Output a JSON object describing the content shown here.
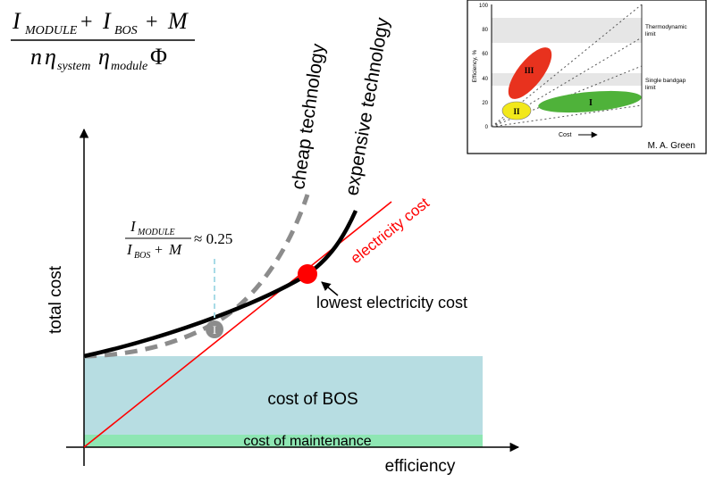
{
  "formula": {
    "num_I": "I",
    "num_sub1": "MODULE",
    "num_plus1": "+",
    "num_I2": "I",
    "num_sub2": "BOS",
    "num_plus2": "+",
    "num_M": "M",
    "den_n": "n",
    "den_eta1": "η",
    "den_sub1": "system",
    "den_eta2": "η",
    "den_sub2": "module",
    "den_phi": "Φ"
  },
  "ratio": {
    "num_I": "I",
    "num_sub": "MODULE",
    "den_I": "I",
    "den_sub": "BOS",
    "den_plus": "+",
    "den_M": "M",
    "approx": "≈ 0.25"
  },
  "labels": {
    "y_axis": "total cost",
    "x_axis": "efficiency",
    "cheap": "cheap technology",
    "expensive": "expensive technology",
    "electricity_cost": "electricity cost",
    "lowest": "lowest electricity cost",
    "bos": "cost of BOS",
    "maintenance": "cost of maintenance",
    "marker_I": "I"
  },
  "inset": {
    "y_ticks": [
      "100",
      "80",
      "60",
      "40",
      "20",
      "0"
    ],
    "y_label": "Efficiency, %",
    "x_label": "Cost",
    "thermo": [
      "Thermodynamic",
      "limit"
    ],
    "bandgap": [
      "Single bandgap",
      "limit"
    ],
    "region_III": "III",
    "region_II": "II",
    "region_I": "I",
    "credit": "M. A. Green",
    "colors": {
      "III": "#e8321e",
      "II": "#f2e81a",
      "I": "#4fb23a",
      "band": "#e6e6e6"
    }
  },
  "colors": {
    "bos": "#b7dde2",
    "maintenance": "#8ee6b3",
    "electricity": "#ff0000",
    "cheap_curve": "#8c8c8c",
    "expensive_curve": "#000000",
    "guide": "#a8dbe6"
  }
}
